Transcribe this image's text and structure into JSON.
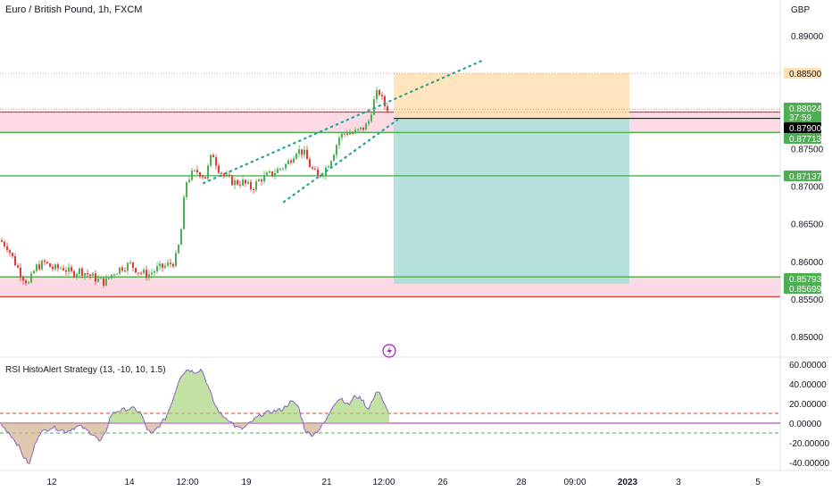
{
  "header": {
    "title": "Euro / British Pound, 1h, FXCM",
    "currency": "GBP"
  },
  "colors": {
    "up": "#26a69a",
    "down": "#ef5350",
    "candle_up": "#4caf50",
    "candle_down": "#e53935",
    "zone_red": "#f8bbd0",
    "zone_green_line": "#4caf50",
    "target_fill": "#ffe0b2",
    "stop_fill": "#b2dfdb",
    "trend_dots": "#26a69a",
    "hist_pos": "#b9e4a0",
    "hist_neg": "#f4b6c2",
    "rsi_line": "#7e57c2"
  },
  "price_axis": {
    "ticks": [
      "0.89000",
      "0.87500",
      "0.87000",
      "0.86500",
      "0.86000",
      "0.85500",
      "0.85000"
    ],
    "labels": [
      {
        "text": "0.88500",
        "style": "orange"
      },
      {
        "text": "0.88024",
        "style": "green"
      },
      {
        "text": "37:59",
        "style": "green"
      },
      {
        "text": "0.87900",
        "style": "black"
      },
      {
        "text": "0.87713",
        "style": "green"
      },
      {
        "text": "0.87137",
        "style": "green"
      },
      {
        "text": "0.85793",
        "style": "green"
      },
      {
        "text": "0.85699",
        "style": "green"
      }
    ]
  },
  "time_axis": {
    "ticks": [
      "12",
      "14",
      "12:00",
      "19",
      "21",
      "12:00",
      "26",
      "28",
      "09:00",
      "2023",
      "3",
      "5"
    ]
  },
  "indicator": {
    "title": "RSI HistoAlert Strategy (13, -10, 10, 1.5)",
    "ticks": [
      "60.00000",
      "40.00000",
      "20.00000",
      "0.00000",
      "-20.00000",
      "-40.00000"
    ],
    "upper_band": 10,
    "lower_band": -10
  },
  "chart_data": {
    "type": "candlestick",
    "symbol": "Euro / British Pound, 1h, FXCM",
    "y_range": [
      0.8462,
      0.8918
    ],
    "levels": [
      0.885,
      0.88024,
      0.879,
      0.87713,
      0.87137,
      0.85793,
      0.85699
    ],
    "price_path": [
      [
        0,
        0.8628
      ],
      [
        8,
        0.862
      ],
      [
        16,
        0.86
      ],
      [
        24,
        0.8582
      ],
      [
        32,
        0.857
      ],
      [
        40,
        0.8592
      ],
      [
        50,
        0.8598
      ],
      [
        60,
        0.859
      ],
      [
        70,
        0.8592
      ],
      [
        80,
        0.8584
      ],
      [
        90,
        0.8588
      ],
      [
        100,
        0.8582
      ],
      [
        110,
        0.8575
      ],
      [
        118,
        0.8572
      ],
      [
        126,
        0.8584
      ],
      [
        136,
        0.8592
      ],
      [
        146,
        0.8596
      ],
      [
        156,
        0.8586
      ],
      [
        166,
        0.8582
      ],
      [
        176,
        0.859
      ],
      [
        186,
        0.8594
      ],
      [
        196,
        0.86
      ],
      [
        202,
        0.863
      ],
      [
        208,
        0.8705
      ],
      [
        214,
        0.8715
      ],
      [
        222,
        0.872
      ],
      [
        230,
        0.8712
      ],
      [
        238,
        0.8745
      ],
      [
        244,
        0.8725
      ],
      [
        252,
        0.8712
      ],
      [
        262,
        0.8705
      ],
      [
        272,
        0.8705
      ],
      [
        282,
        0.8697
      ],
      [
        292,
        0.871
      ],
      [
        302,
        0.8715
      ],
      [
        312,
        0.8722
      ],
      [
        322,
        0.873
      ],
      [
        332,
        0.8748
      ],
      [
        340,
        0.8745
      ],
      [
        348,
        0.8725
      ],
      [
        356,
        0.8712
      ],
      [
        364,
        0.8722
      ],
      [
        372,
        0.874
      ],
      [
        380,
        0.8765
      ],
      [
        388,
        0.8772
      ],
      [
        396,
        0.877
      ],
      [
        404,
        0.8775
      ],
      [
        412,
        0.8782
      ],
      [
        418,
        0.881
      ],
      [
        424,
        0.8828
      ],
      [
        430,
        0.8808
      ],
      [
        436,
        0.8802
      ]
    ],
    "zones": [
      {
        "type": "resistance",
        "from": 0.87713,
        "to": 0.87985
      },
      {
        "type": "support",
        "from": 0.8553,
        "to": 0.85793
      }
    ],
    "position": {
      "type": "short",
      "entry": 0.879,
      "target": 0.885,
      "stop": 0.85699,
      "x_start": 441,
      "x_end": 705
    },
    "trendlines": [
      [
        [
          228,
          0.8704
        ],
        [
          542,
          0.8868
        ]
      ],
      [
        [
          318,
          0.8679
        ],
        [
          445,
          0.8788
        ]
      ]
    ],
    "rsi_histogram": {
      "y_range": [
        -44,
        62
      ],
      "path": [
        [
          0,
          0
        ],
        [
          5,
          -5
        ],
        [
          12,
          -12
        ],
        [
          20,
          -22
        ],
        [
          27,
          -35
        ],
        [
          33,
          -42
        ],
        [
          38,
          -25
        ],
        [
          44,
          -10
        ],
        [
          50,
          -8
        ],
        [
          58,
          -4
        ],
        [
          66,
          -6
        ],
        [
          74,
          -9
        ],
        [
          82,
          -5
        ],
        [
          90,
          -3
        ],
        [
          98,
          -8
        ],
        [
          106,
          -12
        ],
        [
          112,
          -20
        ],
        [
          118,
          -10
        ],
        [
          124,
          8
        ],
        [
          130,
          12
        ],
        [
          140,
          14
        ],
        [
          150,
          15
        ],
        [
          158,
          10
        ],
        [
          164,
          -5
        ],
        [
          170,
          -12
        ],
        [
          178,
          -3
        ],
        [
          186,
          6
        ],
        [
          192,
          20
        ],
        [
          197,
          34
        ],
        [
          202,
          48
        ],
        [
          210,
          55
        ],
        [
          218,
          52
        ],
        [
          226,
          55
        ],
        [
          232,
          40
        ],
        [
          240,
          20
        ],
        [
          248,
          8
        ],
        [
          256,
          4
        ],
        [
          264,
          -4
        ],
        [
          272,
          -6
        ],
        [
          280,
          0
        ],
        [
          288,
          6
        ],
        [
          296,
          10
        ],
        [
          306,
          12
        ],
        [
          316,
          14
        ],
        [
          326,
          22
        ],
        [
          334,
          18
        ],
        [
          342,
          -8
        ],
        [
          350,
          -12
        ],
        [
          358,
          -6
        ],
        [
          366,
          4
        ],
        [
          374,
          20
        ],
        [
          382,
          26
        ],
        [
          390,
          18
        ],
        [
          398,
          28
        ],
        [
          406,
          24
        ],
        [
          412,
          14
        ],
        [
          418,
          24
        ],
        [
          424,
          35
        ],
        [
          430,
          20
        ],
        [
          436,
          8
        ]
      ]
    }
  }
}
